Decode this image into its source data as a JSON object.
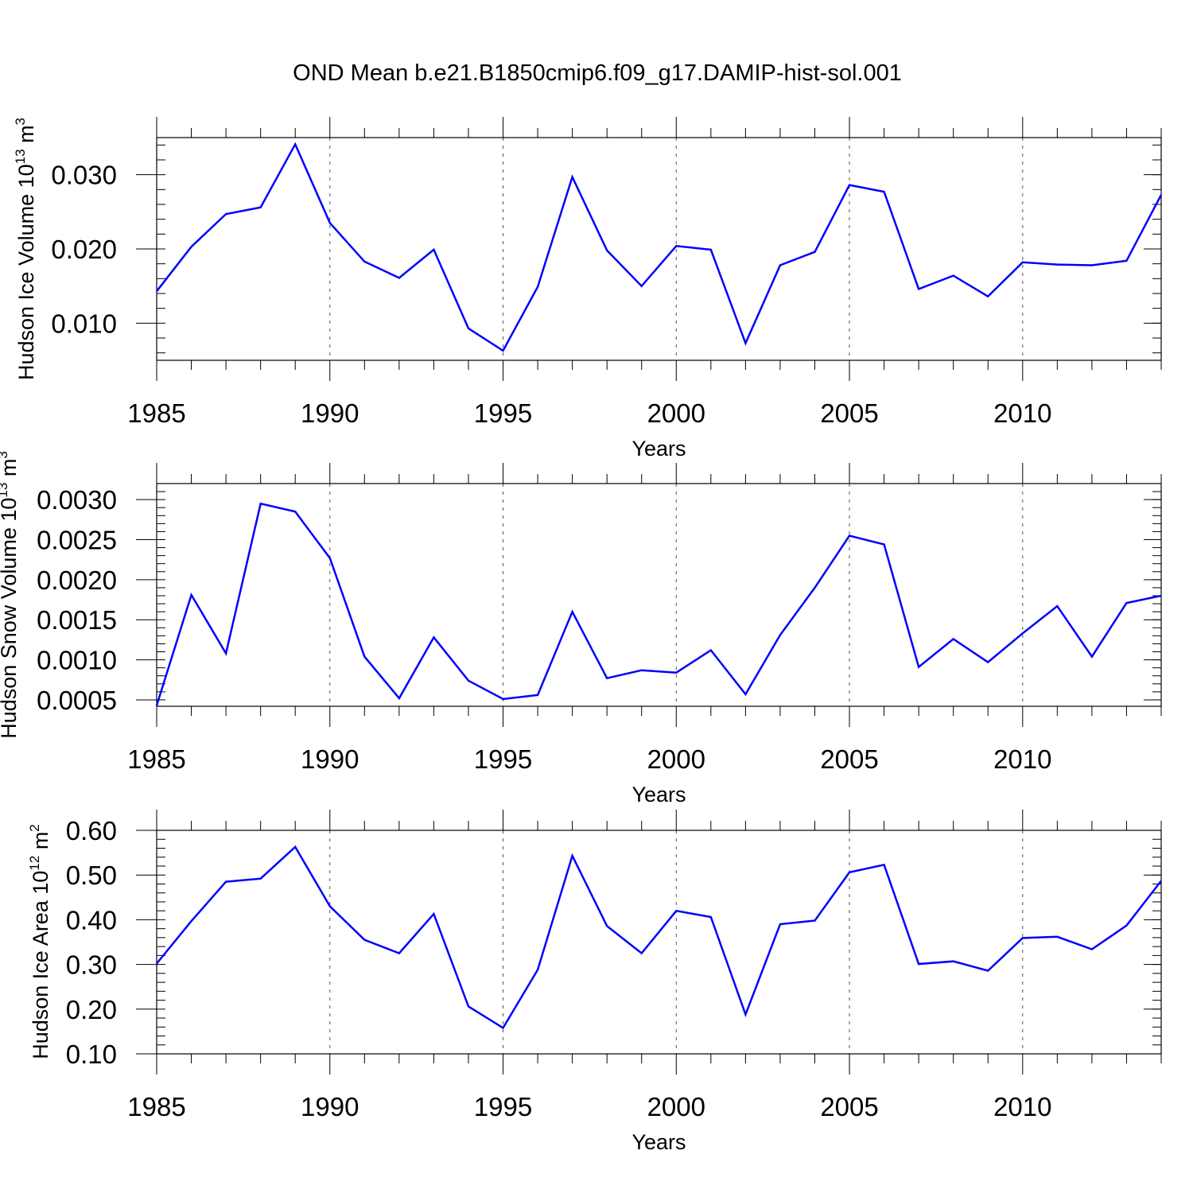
{
  "figure_title": "OND Mean b.e21.B1850cmip6.f09_g17.DAMIP-hist-sol.001",
  "line_color": "#0000ff",
  "chart_data": [
    {
      "type": "line",
      "id": "ice-volume",
      "ylabel_main": "Hudson Ice Volume 10",
      "ylabel_exp": "13",
      "ylabel_unit": " m",
      "ylabel_unit_exp": "3",
      "xlabel": "Years",
      "xlim": [
        1985,
        2014
      ],
      "ylim": [
        0.005,
        0.035
      ],
      "yticks": [
        0.01,
        0.02,
        0.03
      ],
      "ytick_labels": [
        "0.010",
        "0.020",
        "0.030"
      ],
      "yminor_step": 0.002,
      "xticks": [
        1985,
        1990,
        1995,
        2000,
        2005,
        2010
      ],
      "xtick_labels": [
        "1985",
        "1990",
        "1995",
        "2000",
        "2005",
        "2010"
      ],
      "grid": "vertical dashed at major x ticks",
      "x": [
        1985,
        1986,
        1987,
        1988,
        1989,
        1990,
        1991,
        1992,
        1993,
        1994,
        1995,
        1996,
        1997,
        1998,
        1999,
        2000,
        2001,
        2002,
        2003,
        2004,
        2005,
        2006,
        2007,
        2008,
        2009,
        2010,
        2011,
        2012,
        2013,
        2014
      ],
      "values": [
        0.0143,
        0.0203,
        0.0247,
        0.0256,
        0.0341,
        0.0235,
        0.0183,
        0.0161,
        0.0199,
        0.0093,
        0.0063,
        0.0149,
        0.0297,
        0.0198,
        0.015,
        0.0204,
        0.0199,
        0.0073,
        0.0178,
        0.0196,
        0.0286,
        0.0277,
        0.0146,
        0.0164,
        0.0136,
        0.0182,
        0.0179,
        0.0178,
        0.0184,
        0.0273
      ]
    },
    {
      "type": "line",
      "id": "snow-volume",
      "ylabel_main": "Hudson Snow Volume 10",
      "ylabel_exp": "13",
      "ylabel_unit": " m",
      "ylabel_unit_exp": "3",
      "xlabel": "Years",
      "xlim": [
        1985,
        2014
      ],
      "ylim": [
        0.00042,
        0.0032
      ],
      "yticks": [
        0.0005,
        0.001,
        0.0015,
        0.002,
        0.0025,
        0.003
      ],
      "ytick_labels": [
        "0.0005",
        "0.0010",
        "0.0015",
        "0.0020",
        "0.0025",
        "0.0030"
      ],
      "yminor_step": 0.0001,
      "xticks": [
        1985,
        1990,
        1995,
        2000,
        2005,
        2010
      ],
      "xtick_labels": [
        "1985",
        "1990",
        "1995",
        "2000",
        "2005",
        "2010"
      ],
      "grid": "vertical dashed at major x ticks",
      "x": [
        1985,
        1986,
        1987,
        1988,
        1989,
        1990,
        1991,
        1992,
        1993,
        1994,
        1995,
        1996,
        1997,
        1998,
        1999,
        2000,
        2001,
        2002,
        2003,
        2004,
        2005,
        2006,
        2007,
        2008,
        2009,
        2010,
        2011,
        2012,
        2013,
        2014
      ],
      "values": [
        0.00043,
        0.00181,
        0.00108,
        0.00295,
        0.00285,
        0.00227,
        0.00104,
        0.00052,
        0.00128,
        0.00074,
        0.00051,
        0.00056,
        0.0016,
        0.00077,
        0.00087,
        0.00084,
        0.00112,
        0.00057,
        0.00131,
        0.0019,
        0.00255,
        0.00244,
        0.00091,
        0.00126,
        0.00097,
        0.00133,
        0.00167,
        0.00104,
        0.00171,
        0.0018
      ]
    },
    {
      "type": "line",
      "id": "ice-area",
      "ylabel_main": "Hudson Ice Area 10",
      "ylabel_exp": "12",
      "ylabel_unit": " m",
      "ylabel_unit_exp": "2",
      "xlabel": "Years",
      "xlim": [
        1985,
        2014
      ],
      "ylim": [
        0.1,
        0.6
      ],
      "yticks": [
        0.1,
        0.2,
        0.3,
        0.4,
        0.5,
        0.6
      ],
      "ytick_labels": [
        "0.10",
        "0.20",
        "0.30",
        "0.40",
        "0.50",
        "0.60"
      ],
      "yminor_step": 0.02,
      "xticks": [
        1985,
        1990,
        1995,
        2000,
        2005,
        2010
      ],
      "xtick_labels": [
        "1985",
        "1990",
        "1995",
        "2000",
        "2005",
        "2010"
      ],
      "grid": "vertical dashed at major x ticks",
      "x": [
        1985,
        1986,
        1987,
        1988,
        1989,
        1990,
        1991,
        1992,
        1993,
        1994,
        1995,
        1996,
        1997,
        1998,
        1999,
        2000,
        2001,
        2002,
        2003,
        2004,
        2005,
        2006,
        2007,
        2008,
        2009,
        2010,
        2011,
        2012,
        2013,
        2014
      ],
      "values": [
        0.302,
        0.397,
        0.485,
        0.492,
        0.563,
        0.43,
        0.355,
        0.325,
        0.413,
        0.206,
        0.158,
        0.288,
        0.543,
        0.386,
        0.325,
        0.42,
        0.406,
        0.188,
        0.39,
        0.398,
        0.506,
        0.523,
        0.301,
        0.307,
        0.286,
        0.359,
        0.362,
        0.334,
        0.387,
        0.487
      ]
    }
  ]
}
